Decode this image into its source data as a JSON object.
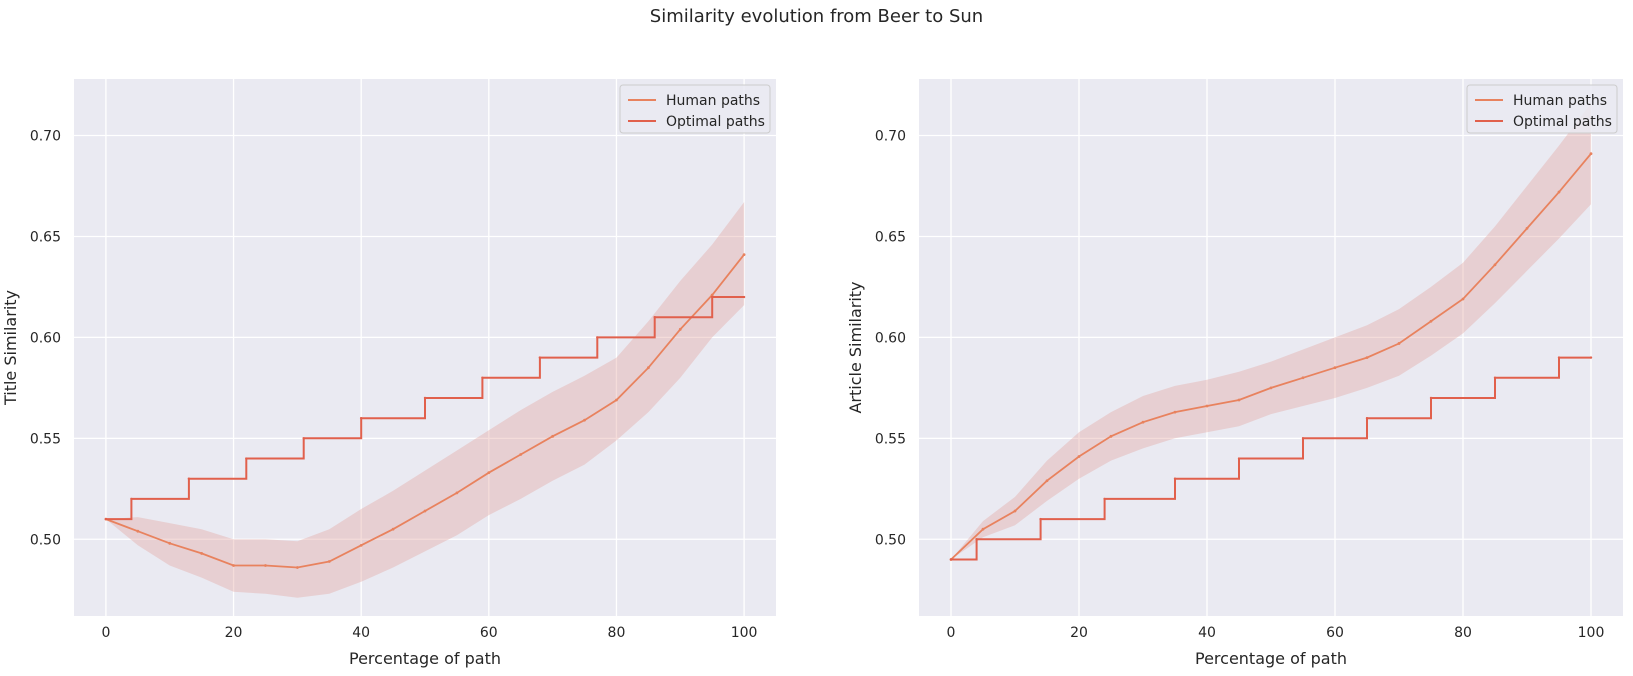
{
  "figure": {
    "suptitle": "Similarity evolution from Beer to Sun"
  },
  "colors": {
    "background": "#eaeaf2",
    "grid": "#ffffff",
    "human": "#e8825e",
    "optimal": "#e1604c",
    "band": "#e3a8a3"
  },
  "chart_data": [
    {
      "type": "line",
      "xlabel": "Percentage of path",
      "ylabel": "Title Similarity",
      "xlim": [
        -5,
        105
      ],
      "ylim": [
        0.462,
        0.728
      ],
      "xticks": [
        0,
        20,
        40,
        60,
        80,
        100
      ],
      "yticks": [
        0.5,
        0.55,
        0.6,
        0.65,
        0.7
      ],
      "xtick_labels": [
        "0",
        "20",
        "40",
        "60",
        "80",
        "100"
      ],
      "ytick_labels": [
        "0.50",
        "0.55",
        "0.60",
        "0.65",
        "0.70"
      ],
      "grid": true,
      "legend": {
        "position": "top-right",
        "entries": [
          "Human paths",
          "Optimal paths"
        ]
      },
      "series": [
        {
          "name": "Human paths",
          "x": [
            0,
            5,
            10,
            15,
            20,
            25,
            30,
            35,
            40,
            45,
            50,
            55,
            60,
            65,
            70,
            75,
            80,
            85,
            90,
            95,
            100
          ],
          "values": [
            0.51,
            0.504,
            0.498,
            0.493,
            0.487,
            0.487,
            0.486,
            0.489,
            0.497,
            0.505,
            0.514,
            0.523,
            0.533,
            0.542,
            0.551,
            0.559,
            0.569,
            0.585,
            0.604,
            0.621,
            0.641
          ],
          "lower": [
            0.51,
            0.497,
            0.487,
            0.481,
            0.474,
            0.473,
            0.471,
            0.473,
            0.479,
            0.486,
            0.494,
            0.502,
            0.512,
            0.52,
            0.529,
            0.537,
            0.549,
            0.563,
            0.58,
            0.6,
            0.616
          ],
          "upper": [
            0.51,
            0.511,
            0.508,
            0.505,
            0.5,
            0.5,
            0.499,
            0.505,
            0.515,
            0.524,
            0.534,
            0.544,
            0.554,
            0.564,
            0.573,
            0.581,
            0.59,
            0.608,
            0.628,
            0.646,
            0.667
          ]
        },
        {
          "name": "Optimal paths",
          "step": true,
          "x": [
            0,
            4,
            13,
            22,
            31,
            40,
            50,
            59,
            68,
            77,
            86,
            95,
            100
          ],
          "values": [
            0.51,
            0.52,
            0.53,
            0.54,
            0.55,
            0.56,
            0.57,
            0.58,
            0.59,
            0.6,
            0.61,
            0.62,
            0.62
          ]
        }
      ]
    },
    {
      "type": "line",
      "xlabel": "Percentage of path",
      "ylabel": "Article Similarity",
      "xlim": [
        -5,
        105
      ],
      "ylim": [
        0.462,
        0.728
      ],
      "xticks": [
        0,
        20,
        40,
        60,
        80,
        100
      ],
      "yticks": [
        0.5,
        0.55,
        0.6,
        0.65,
        0.7
      ],
      "xtick_labels": [
        "0",
        "20",
        "40",
        "60",
        "80",
        "100"
      ],
      "ytick_labels": [
        "0.50",
        "0.55",
        "0.60",
        "0.65",
        "0.70"
      ],
      "grid": true,
      "legend": {
        "position": "top-right",
        "entries": [
          "Human paths",
          "Optimal paths"
        ]
      },
      "series": [
        {
          "name": "Human paths",
          "x": [
            0,
            5,
            10,
            15,
            20,
            25,
            30,
            35,
            40,
            45,
            50,
            55,
            60,
            65,
            70,
            75,
            80,
            85,
            90,
            95,
            100
          ],
          "values": [
            0.49,
            0.505,
            0.514,
            0.529,
            0.541,
            0.551,
            0.558,
            0.563,
            0.566,
            0.569,
            0.575,
            0.58,
            0.585,
            0.59,
            0.597,
            0.608,
            0.619,
            0.636,
            0.654,
            0.672,
            0.691
          ],
          "lower": [
            0.49,
            0.501,
            0.507,
            0.519,
            0.53,
            0.539,
            0.545,
            0.55,
            0.553,
            0.556,
            0.562,
            0.566,
            0.57,
            0.575,
            0.581,
            0.591,
            0.602,
            0.617,
            0.633,
            0.649,
            0.666
          ],
          "upper": [
            0.49,
            0.509,
            0.521,
            0.539,
            0.553,
            0.563,
            0.571,
            0.576,
            0.579,
            0.583,
            0.588,
            0.594,
            0.6,
            0.606,
            0.614,
            0.625,
            0.637,
            0.655,
            0.675,
            0.695,
            0.716
          ]
        },
        {
          "name": "Optimal paths",
          "step": true,
          "x": [
            0,
            4,
            14,
            24,
            35,
            45,
            55,
            65,
            75,
            85,
            95,
            100
          ],
          "values": [
            0.49,
            0.5,
            0.51,
            0.52,
            0.53,
            0.54,
            0.55,
            0.56,
            0.57,
            0.58,
            0.59,
            0.59
          ]
        }
      ]
    }
  ]
}
